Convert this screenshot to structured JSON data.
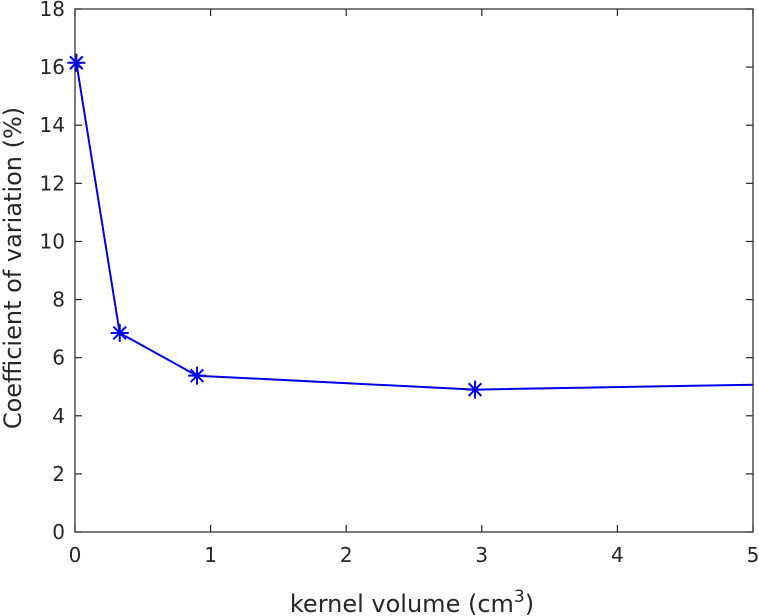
{
  "chart_data": {
    "type": "line",
    "title": "",
    "xlabel": "kernel volume (cm",
    "xlabel_superscript": "3",
    "xlabel_suffix": ")",
    "ylabel": "Coefficient of variation (%)",
    "xlim": [
      0,
      5
    ],
    "ylim": [
      0,
      18
    ],
    "xticks": [
      "0",
      "1",
      "2",
      "3",
      "4",
      "5"
    ],
    "yticks": [
      "0",
      "2",
      "4",
      "6",
      "8",
      "10",
      "12",
      "14",
      "16",
      "18"
    ],
    "grid": false,
    "series": [
      {
        "color": "#0000ee",
        "marker": "asterisk",
        "x": [
          0.01,
          0.33,
          0.9,
          2.95,
          5.0
        ],
        "y": [
          16.15,
          6.85,
          5.38,
          4.9,
          5.07
        ],
        "marker_shown": [
          true,
          true,
          true,
          true,
          false
        ]
      }
    ]
  }
}
